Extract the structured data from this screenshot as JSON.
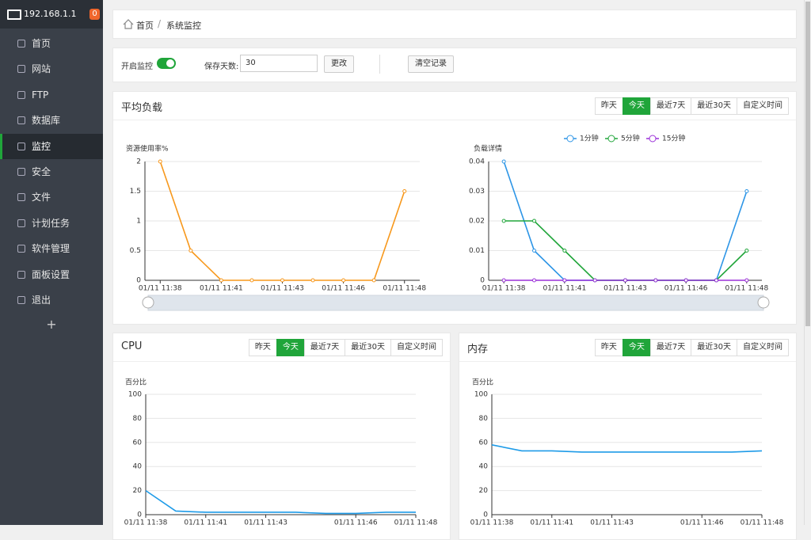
{
  "sidebar": {
    "host": "192.168.1.1",
    "badge": "0",
    "menu": [
      "首页",
      "网站",
      "FTP",
      "数据库",
      "监控",
      "安全",
      "文件",
      "计划任务",
      "软件管理",
      "面板设置",
      "退出"
    ],
    "active": 4,
    "add": "+"
  },
  "breadcrumb": [
    "首页",
    "系统监控"
  ],
  "controls": {
    "monitor_label": "开启监控",
    "monitor_on": true,
    "days_label": "保存天数:",
    "days_value": "30",
    "change_button": "更改",
    "clear_button": "清空记录"
  },
  "panels": [
    {
      "title": "平均负载",
      "ranges": [
        "昨天",
        "今天",
        "最近7天",
        "最近30天",
        "自定义时间"
      ],
      "active_range": 1
    },
    {
      "title": "CPU",
      "ranges": [
        "昨天",
        "今天",
        "最近7天",
        "最近30天",
        "自定义时间"
      ],
      "active_range": 1
    },
    {
      "title": "内存",
      "ranges": [
        "昨天",
        "今天",
        "最近7天",
        "最近30天",
        "自定义时间"
      ],
      "active_range": 1
    }
  ],
  "chart_data": [
    {
      "type": "line",
      "y_label": "资源使用率%",
      "categories": [
        "01/11 11:38",
        null,
        "01/11 11:41",
        null,
        "01/11 11:43",
        null,
        "01/11 11:46",
        null,
        "01/11 11:48"
      ],
      "values": [
        2,
        0.5,
        0,
        0,
        0,
        0,
        0,
        0,
        1.5
      ],
      "color": "#f7981c",
      "markers": true,
      "ylim": [
        0,
        2
      ],
      "yticks": [
        0,
        0.5,
        1,
        1.5,
        2
      ],
      "grid": true
    },
    {
      "type": "line",
      "y_label": "负载详情",
      "categories": [
        "01/11 11:38",
        null,
        "01/11 11:41",
        null,
        "01/11 11:43",
        null,
        "01/11 11:46",
        null,
        "01/11 11:48"
      ],
      "series": [
        {
          "name": "1分钟",
          "color": "#2d95e6",
          "values": [
            0.04,
            0.01,
            0,
            0,
            0,
            0,
            0,
            0,
            0.03
          ]
        },
        {
          "name": "5分钟",
          "color": "#20a53a",
          "values": [
            0.02,
            0.02,
            0.01,
            0,
            0,
            0,
            0,
            0,
            0.01
          ]
        },
        {
          "name": "15分钟",
          "color": "#9b30d9",
          "values": [
            0,
            0,
            0,
            0,
            0,
            0,
            0,
            0,
            0
          ]
        }
      ],
      "markers": true,
      "ylim": [
        0,
        0.04
      ],
      "yticks": [
        0,
        0.01,
        0.02,
        0.03,
        0.04
      ],
      "grid": true
    },
    {
      "type": "line",
      "y_label": "百分比",
      "categories": [
        "01/11 11:38",
        null,
        "01/11 11:41",
        null,
        "01/11 11:43",
        null,
        null,
        "01/11 11:46",
        null,
        "01/11 11:48"
      ],
      "values": [
        20,
        3,
        2,
        2,
        2,
        2,
        1,
        1,
        2,
        2
      ],
      "color": "#1e9be8",
      "markers": false,
      "ylim": [
        0,
        100
      ],
      "yticks": [
        0,
        20,
        40,
        60,
        80,
        100
      ],
      "grid": true
    },
    {
      "type": "line",
      "y_label": "百分比",
      "categories": [
        "01/11 11:38",
        null,
        "01/11 11:41",
        null,
        "01/11 11:43",
        null,
        null,
        "01/11 11:46",
        null,
        "01/11 11:48"
      ],
      "values": [
        58,
        53,
        53,
        52,
        52,
        52,
        52,
        52,
        52,
        53
      ],
      "color": "#1e9be8",
      "markers": false,
      "ylim": [
        0,
        100
      ],
      "yticks": [
        0,
        20,
        40,
        60,
        80,
        100
      ],
      "grid": true
    }
  ]
}
